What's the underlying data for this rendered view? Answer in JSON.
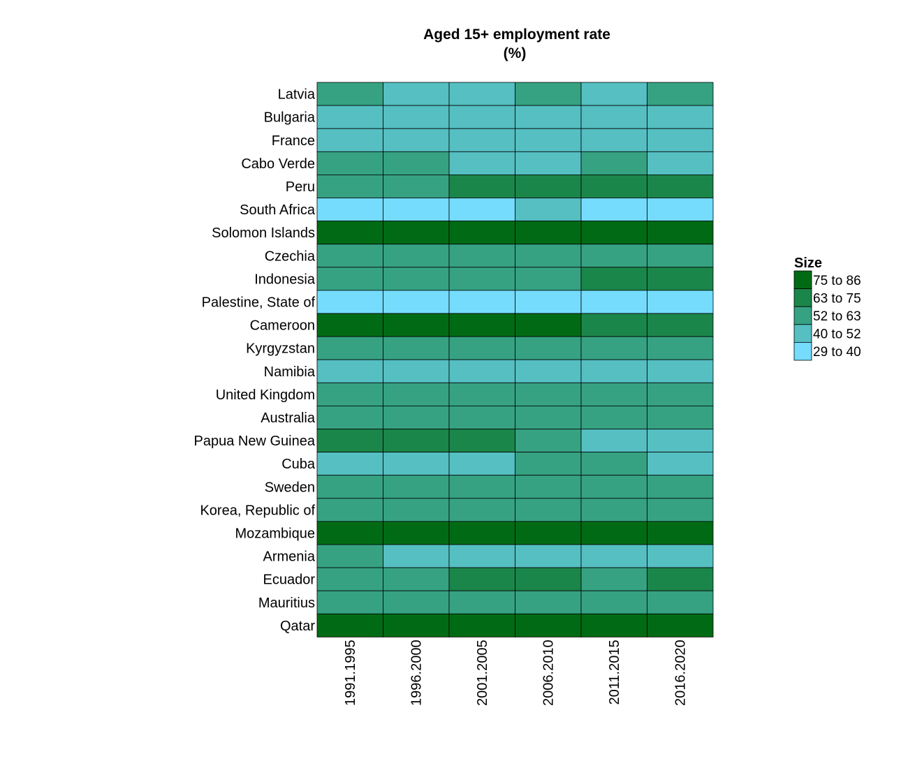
{
  "chart_data": {
    "type": "heatmap",
    "title": "Aged 15+ employment rate",
    "subtitle": "(%)",
    "xlabel": "",
    "ylabel": "",
    "columns": [
      "1991.1995",
      "1996.2000",
      "2001.2005",
      "2006.2010",
      "2011.2015",
      "2016.2020"
    ],
    "rows": [
      "Latvia",
      "Bulgaria",
      "France",
      "Cabo Verde",
      "Peru",
      "South Africa",
      "Solomon Islands",
      "Czechia",
      "Indonesia",
      "Palestine, State of",
      "Cameroon",
      "Kyrgyzstan",
      "Namibia",
      "United Kingdom",
      "Australia",
      "Papua New Guinea",
      "Cuba",
      "Sweden",
      "Korea, Republic of",
      "Mozambique",
      "Armenia",
      "Ecuador",
      "Mauritius",
      "Qatar"
    ],
    "legend": {
      "title": "Size",
      "placement": "right",
      "bins": [
        {
          "label": "75 to 86",
          "color": "#006b14"
        },
        {
          "label": "63 to 75",
          "color": "#1b864a"
        },
        {
          "label": "52 to 63",
          "color": "#36a282"
        },
        {
          "label": "40 to 52",
          "color": "#55bfc2"
        },
        {
          "label": "29 to 40",
          "color": "#75dcfe"
        }
      ]
    },
    "bin_index_note_removed": true,
    "values": [
      [
        2,
        3,
        3,
        2,
        3,
        2
      ],
      [
        3,
        3,
        3,
        3,
        3,
        3
      ],
      [
        3,
        3,
        3,
        3,
        3,
        3
      ],
      [
        2,
        2,
        3,
        3,
        2,
        3
      ],
      [
        2,
        2,
        1,
        1,
        1,
        1
      ],
      [
        4,
        4,
        4,
        3,
        4,
        4
      ],
      [
        0,
        0,
        0,
        0,
        0,
        0
      ],
      [
        2,
        2,
        2,
        2,
        2,
        2
      ],
      [
        2,
        2,
        2,
        2,
        1,
        1
      ],
      [
        4,
        4,
        4,
        4,
        4,
        4
      ],
      [
        0,
        0,
        0,
        0,
        1,
        1
      ],
      [
        2,
        2,
        2,
        2,
        2,
        2
      ],
      [
        3,
        3,
        3,
        3,
        3,
        3
      ],
      [
        2,
        2,
        2,
        2,
        2,
        2
      ],
      [
        2,
        2,
        2,
        2,
        2,
        2
      ],
      [
        1,
        1,
        1,
        2,
        3,
        3
      ],
      [
        3,
        3,
        3,
        2,
        2,
        3
      ],
      [
        2,
        2,
        2,
        2,
        2,
        2
      ],
      [
        2,
        2,
        2,
        2,
        2,
        2
      ],
      [
        0,
        0,
        0,
        0,
        0,
        0
      ],
      [
        2,
        3,
        3,
        3,
        3,
        3
      ],
      [
        2,
        2,
        1,
        1,
        2,
        1
      ],
      [
        2,
        2,
        2,
        2,
        2,
        2
      ],
      [
        0,
        0,
        0,
        0,
        0,
        0
      ]
    ],
    "grid": false
  }
}
